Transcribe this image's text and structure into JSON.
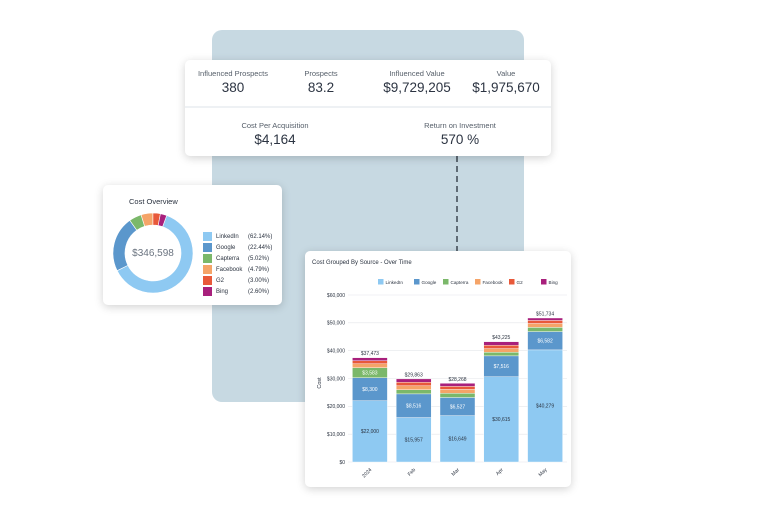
{
  "kpis": {
    "influenced_prospects": {
      "label": "Influenced Prospects",
      "value": "380"
    },
    "prospects": {
      "label": "Prospects",
      "value": "83.2"
    },
    "influenced_value": {
      "label": "Influenced Value",
      "value": "$9,729,205"
    },
    "value": {
      "label": "Value",
      "value": "$1,975,670"
    },
    "cost_per_acquisition": {
      "label": "Cost Per Acquisition",
      "value": "$4,164"
    },
    "roi": {
      "label": "Return on Investment",
      "value": "570 %"
    }
  },
  "cost_overview": {
    "title": "Cost Overview",
    "total": "$346,598",
    "slices": [
      {
        "name": "LinkedIn",
        "pct_label": "(62.14%)",
        "pct": 62.14,
        "color": "#8ec9f2"
      },
      {
        "name": "Google",
        "pct_label": "(22.44%)",
        "pct": 22.44,
        "color": "#5b97cc"
      },
      {
        "name": "Capterra",
        "pct_label": "(5.02%)",
        "pct": 5.02,
        "color": "#7bb86a"
      },
      {
        "name": "Facebook",
        "pct_label": "(4.79%)",
        "pct": 4.79,
        "color": "#f5a468"
      },
      {
        "name": "G2",
        "pct_label": "(3.00%)",
        "pct": 3.0,
        "color": "#e8593a"
      },
      {
        "name": "Bing",
        "pct_label": "(2.60%)",
        "pct": 2.6,
        "color": "#a8207c"
      }
    ]
  },
  "chart_data": {
    "type": "bar",
    "stacked": true,
    "title": "Cost Grouped By Source - Over Time",
    "ylabel": "Cost",
    "xlabel": "",
    "ylim": [
      0,
      60000
    ],
    "yticks": [
      {
        "value": 0,
        "label": "$0"
      },
      {
        "value": 10000,
        "label": "$10,000"
      },
      {
        "value": 20000,
        "label": "$20,000"
      },
      {
        "value": 30000,
        "label": "$30,000"
      },
      {
        "value": 40000,
        "label": "$40,000"
      },
      {
        "value": 50000,
        "label": "$50,000"
      },
      {
        "value": 60000,
        "label": "$60,000"
      }
    ],
    "legend": "top",
    "categories": [
      "2024",
      "Feb",
      "Mar",
      "Apr",
      "May"
    ],
    "totals": [
      "$37,473",
      "$29,863",
      "$28,268",
      "$43,225",
      "$51,734"
    ],
    "series": [
      {
        "name": "LinkedIn",
        "color": "#8ec9f2",
        "values": [
          22000,
          15957,
          16649,
          30615,
          40279
        ],
        "labels": [
          "$22,000",
          "$15,957",
          "$16,649",
          "$30,615",
          "$40,279"
        ]
      },
      {
        "name": "Google",
        "color": "#5b97cc",
        "values": [
          8300,
          8516,
          6527,
          7516,
          6582
        ],
        "labels": [
          "$8,300",
          "$8,516",
          "$6,527",
          "$7,516",
          "$6,582"
        ]
      },
      {
        "name": "Capterra",
        "color": "#7bb86a",
        "values": [
          3583,
          1500,
          1500,
          1300,
          1500
        ],
        "labels": [
          "$3,583",
          "",
          "",
          "",
          ""
        ]
      },
      {
        "name": "Facebook",
        "color": "#f5a468",
        "values": [
          1400,
          1400,
          1400,
          1300,
          1400
        ],
        "labels": [
          "",
          "",
          "",
          "",
          ""
        ]
      },
      {
        "name": "G2",
        "color": "#e8593a",
        "values": [
          1100,
          1300,
          1100,
          1200,
          1100
        ],
        "labels": [
          "",
          "",
          "",
          "",
          ""
        ]
      },
      {
        "name": "Bing",
        "color": "#a8207c",
        "values": [
          1090,
          1190,
          1092,
          1294,
          873
        ],
        "labels": [
          "",
          "",
          "",
          "",
          ""
        ]
      }
    ],
    "grid": true
  }
}
